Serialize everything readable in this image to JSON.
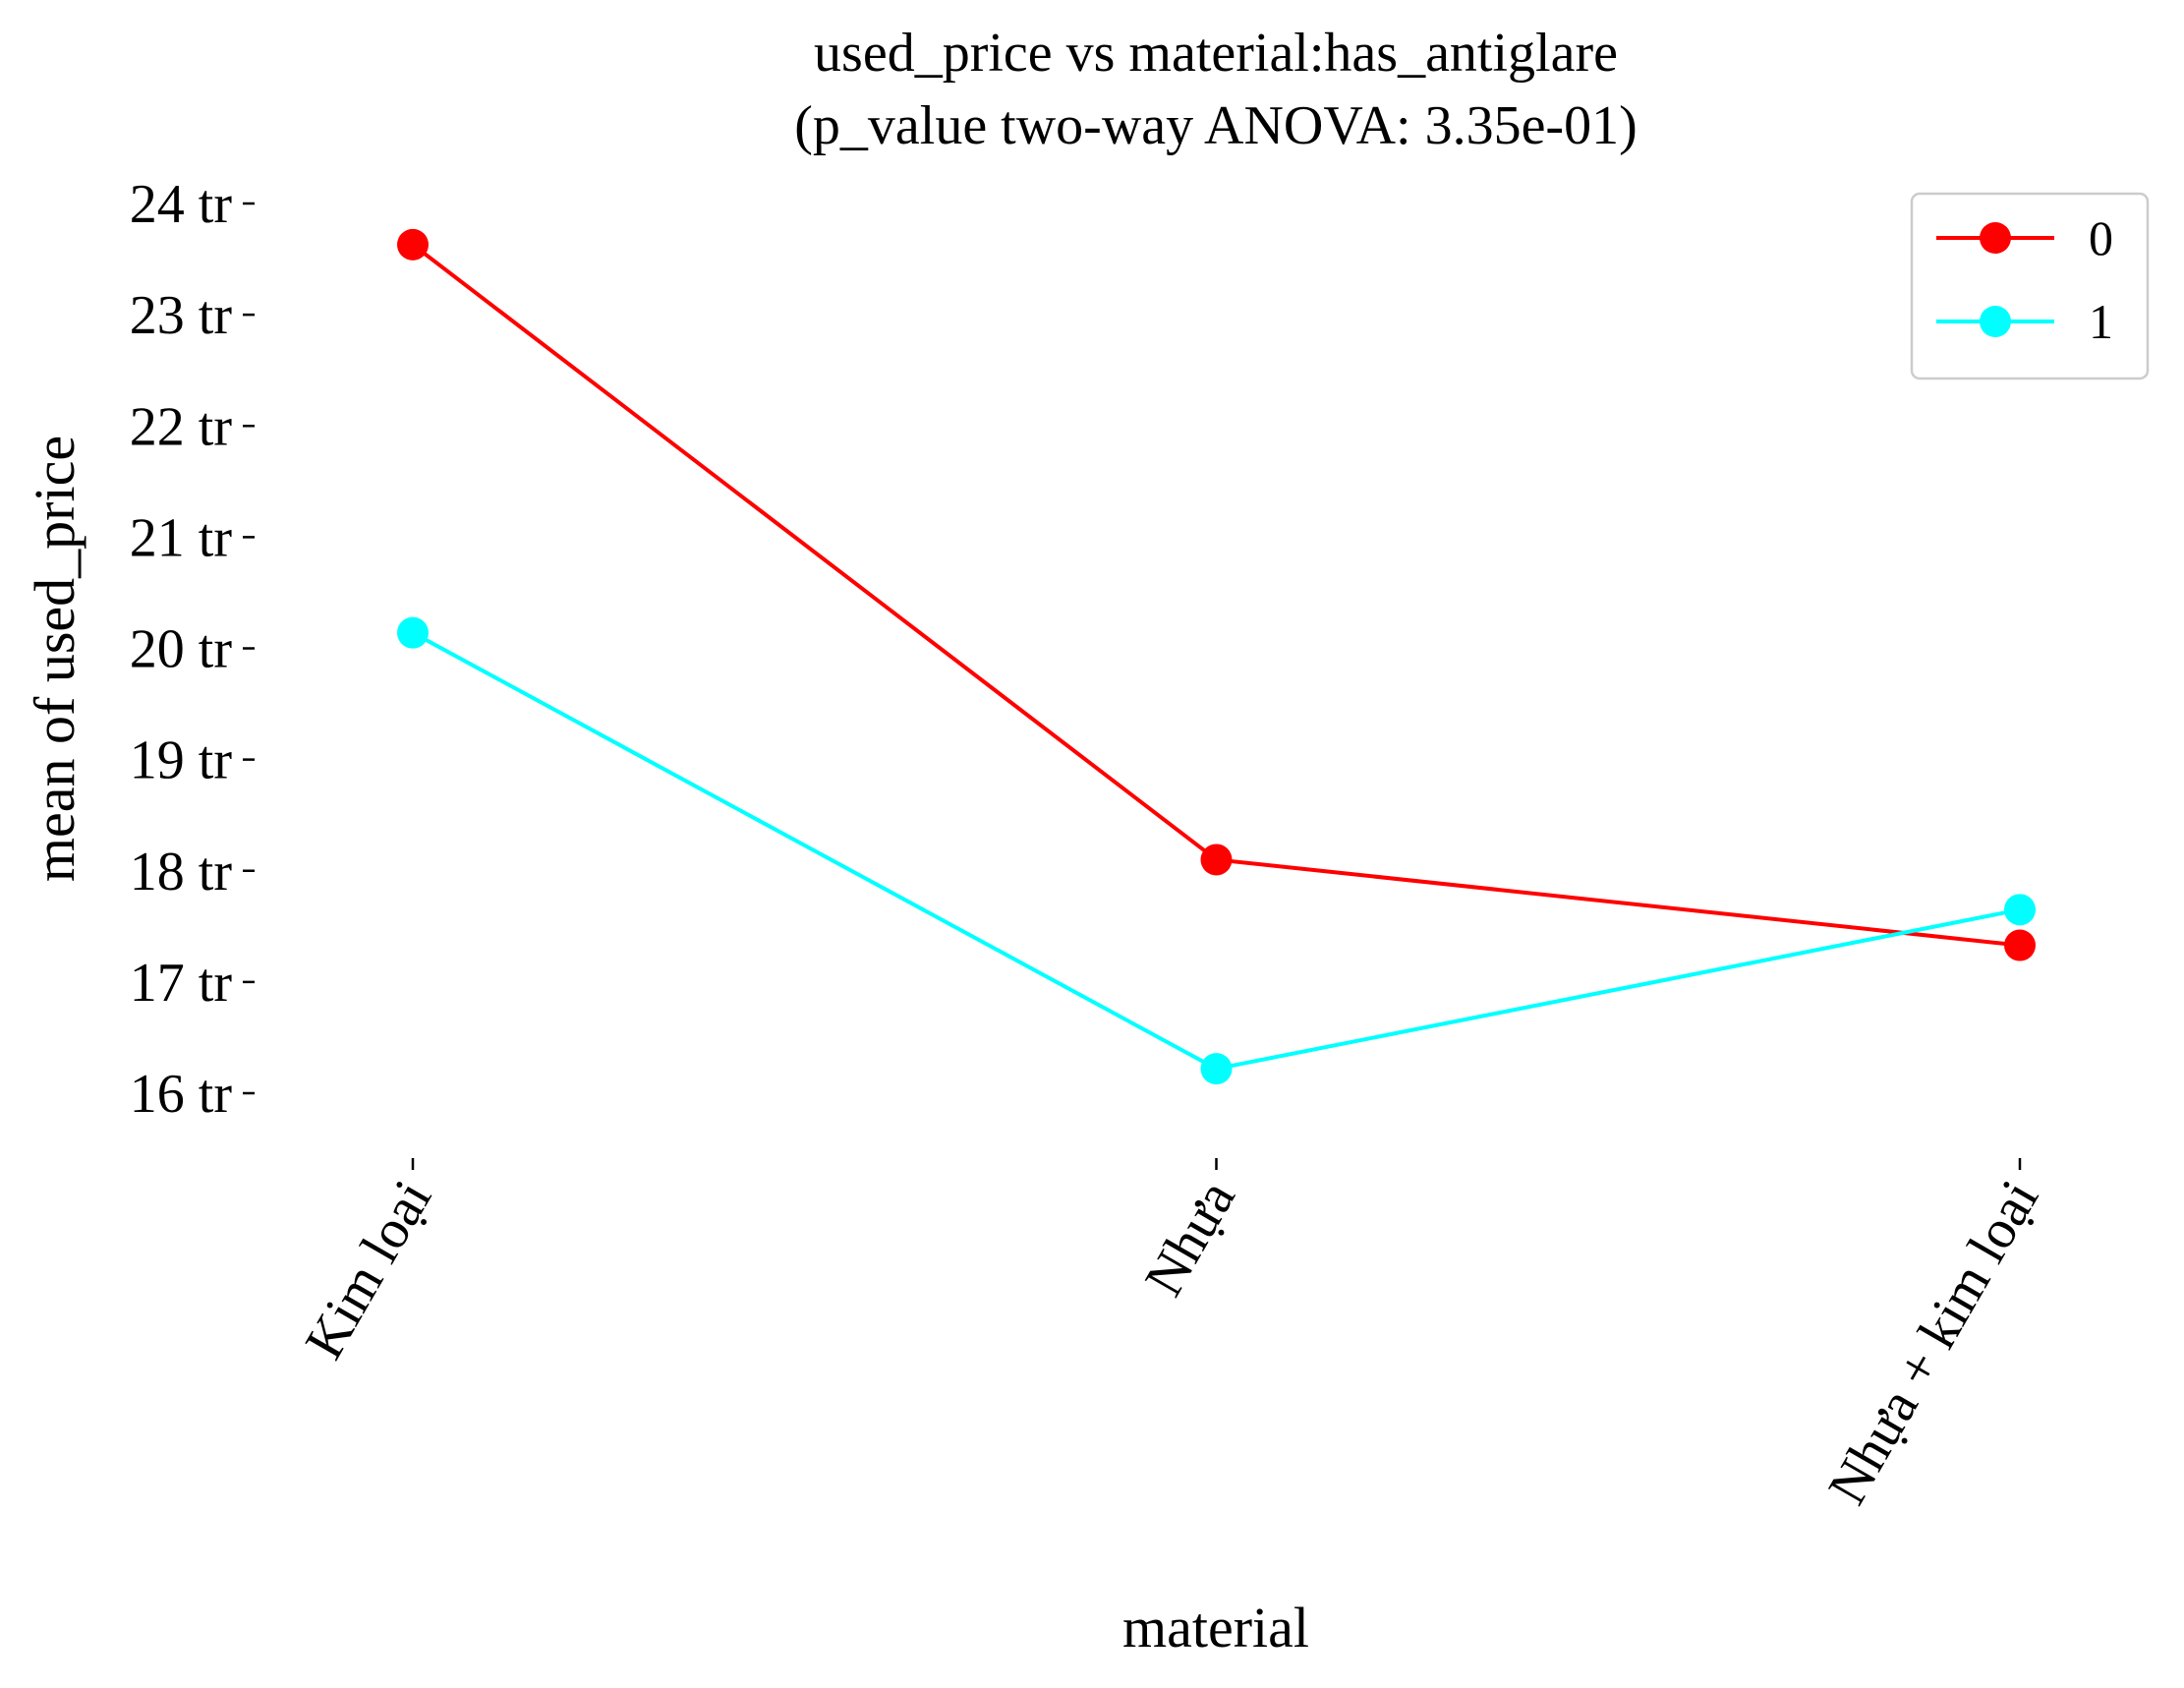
{
  "chart_data": {
    "type": "line",
    "title": "used_price vs material:has_antiglare",
    "subtitle": "(p_value two-way ANOVA: 3.35e-01)",
    "xlabel": "material",
    "ylabel": "mean of used_price",
    "categories": [
      "Kim loại",
      "Nhựa",
      "Nhựa + kim loại"
    ],
    "y_tick_values": [
      16,
      17,
      18,
      19,
      20,
      21,
      22,
      23,
      24
    ],
    "y_tick_labels": [
      "16 tr",
      "17 tr",
      "18 tr",
      "19 tr",
      "20 tr",
      "21 tr",
      "22 tr",
      "23 tr",
      "24 tr"
    ],
    "ylim": [
      15.5,
      24.2
    ],
    "grid": false,
    "legend": {
      "position": "top-right"
    },
    "series": [
      {
        "name": "0",
        "color": "#ff0000",
        "values": [
          23.63,
          18.1,
          17.33
        ]
      },
      {
        "name": "1",
        "color": "#00ffff",
        "values": [
          20.14,
          16.22,
          17.65
        ]
      }
    ]
  }
}
